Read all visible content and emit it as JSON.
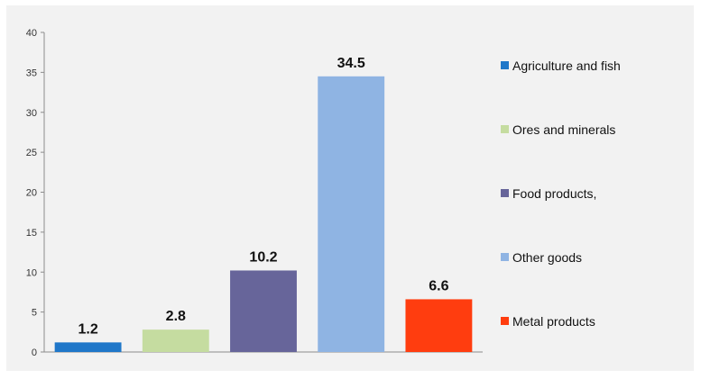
{
  "chart_data": {
    "type": "bar",
    "title": "",
    "xlabel": "",
    "ylabel": "",
    "ylim": [
      0,
      40
    ],
    "yticks": [
      0,
      5,
      10,
      15,
      20,
      25,
      30,
      35,
      40
    ],
    "grid": false,
    "legend_position": "right",
    "categories": [
      "Agriculture and fish",
      "Ores and minerals",
      "Food products,",
      "Other  goods",
      "Metal products"
    ],
    "values": [
      1.2,
      2.8,
      10.2,
      34.5,
      6.6
    ],
    "value_labels": [
      "1.2",
      "2.8",
      "10.2",
      "34.5",
      "6.6"
    ],
    "colors": [
      "#1f77c9",
      "#c5dca0",
      "#67659a",
      "#8fb4e3",
      "#ff3d0f"
    ]
  }
}
